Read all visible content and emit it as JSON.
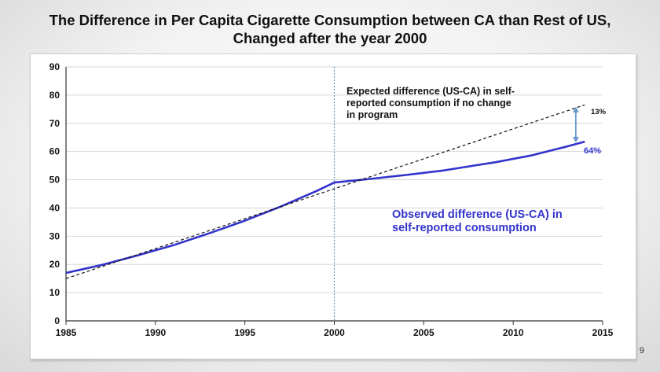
{
  "slide": {
    "title_line1": "The Difference in Per Capita Cigarette Consumption between CA than Rest of US,",
    "title_line2": "Changed after the year 2000",
    "page_number": "9"
  },
  "chart_data": {
    "type": "line",
    "title": "The Difference in Per Capita Cigarette Consumption between CA than Rest of US, Changed after the year 2000",
    "xlabel": "",
    "ylabel": "",
    "xlim": [
      1985,
      2015
    ],
    "ylim": [
      0,
      90
    ],
    "xticks": [
      1985,
      1990,
      1995,
      2000,
      2005,
      2010,
      2015
    ],
    "yticks": [
      0,
      10,
      20,
      30,
      40,
      50,
      60,
      70,
      80,
      90
    ],
    "grid": true,
    "series": [
      {
        "color": "#3333cc",
        "x": [
          1985,
          1987,
          1989,
          1991,
          1993,
          1995,
          1997,
          1999,
          2000,
          2002,
          2004,
          2006,
          2008,
          2009,
          2011,
          2013,
          2014
        ],
        "y": [
          17,
          19.8,
          23.2,
          26.8,
          31,
          35.5,
          40.5,
          46,
          49,
          50.3,
          51.7,
          53.2,
          55.2,
          56.2,
          58.6,
          61.8,
          63.5
        ]
      },
      {
        "color": "#111111",
        "dashed": true,
        "x": [
          1985,
          2014
        ],
        "y": [
          15,
          76.5
        ]
      }
    ],
    "reference_line": {
      "x": 2000,
      "color": "#6699cc"
    },
    "annotations": {
      "expected_line1": "Expected difference (US-CA) in self-",
      "expected_line2": "reported consumption if no change",
      "expected_line3": "in program",
      "observed_line1": "Observed difference (US-CA) in",
      "observed_line2": "self-reported consumption",
      "gap_label": "13%",
      "end_label": "64%"
    },
    "gap_arrow": {
      "x": 2013.5,
      "y_top": 75.5,
      "y_bottom": 63.5,
      "color": "#6699cc"
    }
  }
}
